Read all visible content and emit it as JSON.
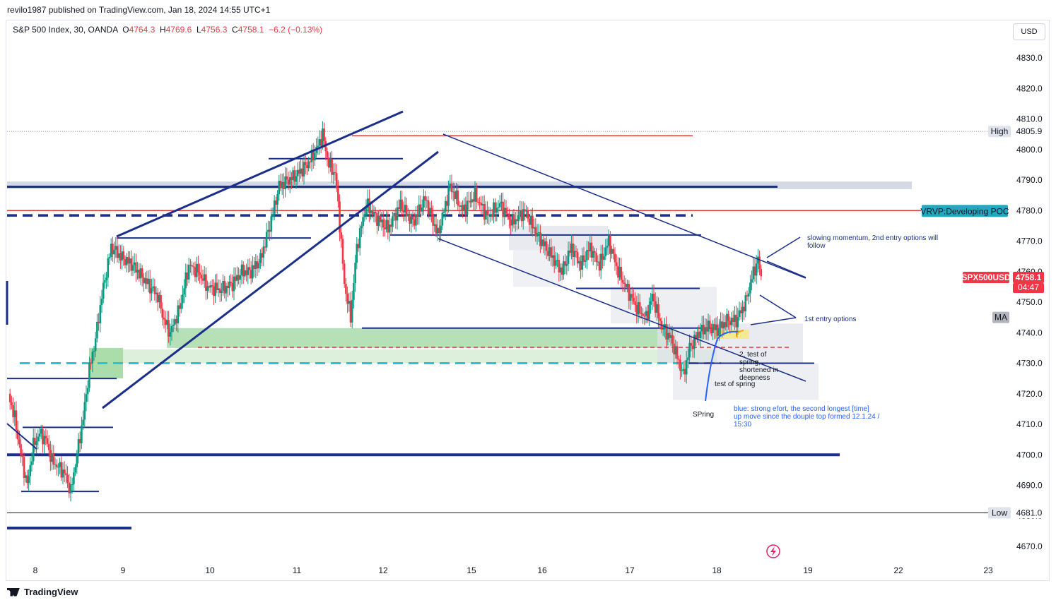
{
  "header": {
    "published": "revilo1987 published on TradingView.com, Jan 18, 2024 14:55 UTC+1"
  },
  "legend": {
    "symbol": "S&P 500 Index, 30, OANDA",
    "o_label": "O",
    "o": "4764.3",
    "h_label": "H",
    "h": "4769.6",
    "l_label": "L",
    "l": "4756.3",
    "c_label": "C",
    "c": "4758.1",
    "change": "−6.2 (−0.13%)"
  },
  "currency_button": "USD",
  "footer": {
    "brand": "TradingView"
  },
  "colors": {
    "up": "#089981",
    "down": "#f23645",
    "trend": "#1b2f8a",
    "red_line": "#e03b3b",
    "teal": "#26c6da",
    "green_zone": "#8fd18f"
  },
  "chart_data": {
    "type": "candlestick",
    "title": "S&P 500 Index, 30, OANDA",
    "ylim": [
      4665,
      4840
    ],
    "y_ticks": [
      4670,
      4680,
      4690,
      4700,
      4710,
      4720,
      4730,
      4740,
      4750,
      4760,
      4770,
      4780,
      4790,
      4800,
      4810,
      4820,
      4830
    ],
    "y_tick_labels": [
      "4670.0",
      "4680.0",
      "4690.0",
      "4700.0",
      "4710.0",
      "4720.0",
      "4730.0",
      "4740.0",
      "4750.0",
      "4760.0",
      "4770.0",
      "4780.0",
      "4790.0",
      "4800.0",
      "4810.0",
      "4820.0",
      "4830.0"
    ],
    "x_ticks": [
      "8",
      "9",
      "10",
      "11",
      "12",
      "15",
      "16",
      "17",
      "18",
      "19",
      "22",
      "23"
    ],
    "price_labels": {
      "high": {
        "text": "High",
        "value": 4805.9,
        "value_text": "4805.9"
      },
      "low": {
        "text": "Low",
        "value": 4681.0,
        "value_text": "4681.0"
      },
      "poc": {
        "text": "VRVP:Developing POC",
        "value": 4780
      },
      "last": {
        "symbol": "SPX500USD",
        "value": 4758.1,
        "value_text": "4758.1",
        "countdown": "04:47"
      },
      "ma": {
        "text": "MA",
        "value": 4745
      }
    },
    "path": [
      [
        0,
        4720
      ],
      [
        2,
        4712
      ],
      [
        4,
        4700
      ],
      [
        6,
        4690
      ],
      [
        8,
        4703
      ],
      [
        10,
        4707
      ],
      [
        12,
        4705
      ],
      [
        14,
        4698
      ],
      [
        16,
        4696
      ],
      [
        18,
        4694
      ],
      [
        20,
        4688
      ],
      [
        22,
        4700
      ],
      [
        24,
        4712
      ],
      [
        26,
        4728
      ],
      [
        28,
        4738
      ],
      [
        30,
        4752
      ],
      [
        33,
        4768
      ],
      [
        36,
        4765
      ],
      [
        40,
        4762
      ],
      [
        44,
        4757
      ],
      [
        48,
        4752
      ],
      [
        50,
        4744
      ],
      [
        52,
        4740
      ],
      [
        55,
        4748
      ],
      [
        58,
        4762
      ],
      [
        61,
        4760
      ],
      [
        64,
        4755
      ],
      [
        68,
        4754
      ],
      [
        72,
        4756
      ],
      [
        75,
        4760
      ],
      [
        78,
        4760
      ],
      [
        81,
        4764
      ],
      [
        84,
        4775
      ],
      [
        87,
        4788
      ],
      [
        90,
        4790
      ],
      [
        93,
        4792
      ],
      [
        96,
        4795
      ],
      [
        99,
        4800
      ],
      [
        101,
        4805
      ],
      [
        103,
        4795
      ],
      [
        105,
        4792
      ],
      [
        106,
        4782
      ],
      [
        108,
        4756
      ],
      [
        110,
        4745
      ],
      [
        112,
        4768
      ],
      [
        115,
        4782
      ],
      [
        118,
        4778
      ],
      [
        122,
        4774
      ],
      [
        126,
        4782
      ],
      [
        130,
        4776
      ],
      [
        134,
        4784
      ],
      [
        138,
        4772
      ],
      [
        142,
        4788
      ],
      [
        146,
        4780
      ],
      [
        150,
        4785
      ],
      [
        154,
        4778
      ],
      [
        158,
        4782
      ],
      [
        162,
        4776
      ],
      [
        166,
        4780
      ],
      [
        170,
        4772
      ],
      [
        174,
        4766
      ],
      [
        178,
        4760
      ],
      [
        181,
        4768
      ],
      [
        184,
        4762
      ],
      [
        187,
        4768
      ],
      [
        190,
        4762
      ],
      [
        193,
        4770
      ],
      [
        196,
        4760
      ],
      [
        199,
        4754
      ],
      [
        202,
        4748
      ],
      [
        205,
        4745
      ],
      [
        207,
        4752
      ],
      [
        210,
        4742
      ],
      [
        213,
        4738
      ],
      [
        215,
        4732
      ],
      [
        217,
        4726
      ],
      [
        219,
        4735
      ],
      [
        222,
        4740
      ],
      [
        225,
        4742
      ],
      [
        228,
        4741
      ],
      [
        231,
        4744
      ],
      [
        234,
        4744
      ],
      [
        237,
        4750
      ],
      [
        239,
        4758
      ],
      [
        241,
        4764
      ],
      [
        242,
        4758
      ]
    ],
    "annotations": [
      {
        "text": "slowing momentum, 2nd entry options will follow",
        "color": "#1b2f8a"
      },
      {
        "text": "1st entry options",
        "color": "#1b2f8a"
      },
      {
        "text": "2. test of spring, shortened in deepness",
        "color": "#131722"
      },
      {
        "text": "test of spring",
        "color": "#131722"
      },
      {
        "text": "SPring",
        "color": "#131722"
      },
      {
        "text": "blue: strong efort, the second longest [time] up move since the douple top formed 12.1.24 / 15:30",
        "color": "#2962ff"
      }
    ]
  }
}
